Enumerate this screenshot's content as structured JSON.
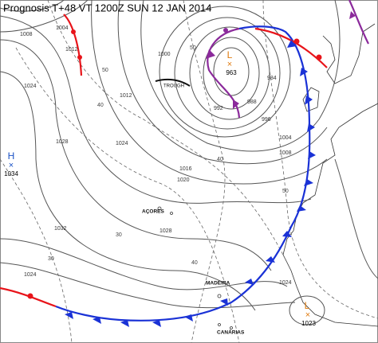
{
  "header": {
    "title": "Prognosis T+48 VT 1200Z SUN 12 JAN 2014"
  },
  "pressure_centers": [
    {
      "type": "L",
      "value": "963"
    },
    {
      "type": "H",
      "value": "1034"
    },
    {
      "type": "L",
      "value": "1023"
    }
  ],
  "places": [
    "AÇORES",
    "MADEIRA",
    "CANÁRIAS"
  ],
  "front_labels": [
    "TROUGH"
  ],
  "isobar_labels": [
    "1008",
    "1004",
    "1012",
    "1024",
    "1028",
    "1032",
    "1024",
    "1000",
    "992",
    "988",
    "984",
    "996",
    "1004",
    "1008",
    "1012",
    "1016",
    "1020",
    "1024",
    "1028",
    "1024"
  ],
  "thickness_labels": [
    "50",
    "40",
    "50",
    "40",
    "30",
    "30",
    "40",
    "50"
  ]
}
